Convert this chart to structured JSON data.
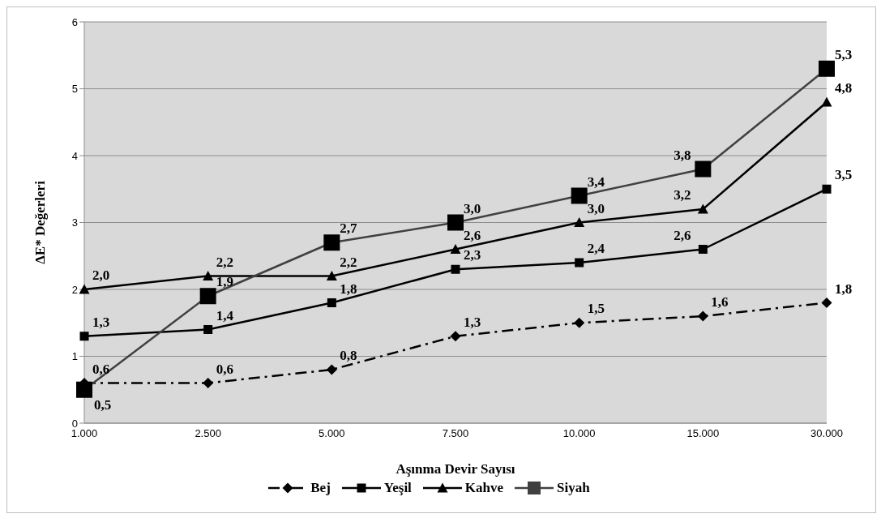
{
  "chart_data": {
    "type": "line",
    "xlabel": "Aşınma Devir Sayısı",
    "ylabel": "ΔE* Değerleri",
    "categories": [
      "1.000",
      "2.500",
      "5.000",
      "7.500",
      "10.000",
      "15.000",
      "30.000"
    ],
    "series": [
      {
        "name": "Bej",
        "color": "#000000",
        "marker": "diamond",
        "line_style": "dashed",
        "values": [
          0.6,
          0.6,
          0.8,
          1.3,
          1.5,
          1.6,
          1.8
        ],
        "value_labels": [
          "0,6",
          "0,6",
          "0,8",
          "1,3",
          "1,5",
          "1,6",
          "1,8"
        ]
      },
      {
        "name": "Yeşil",
        "color": "#000000",
        "marker": "square",
        "line_style": "solid",
        "values": [
          1.3,
          1.4,
          1.8,
          2.3,
          2.4,
          2.6,
          3.5
        ],
        "value_labels": [
          "1,3",
          "1,4",
          "1,8",
          "2,3",
          "2,4",
          "2,6",
          "3,5"
        ]
      },
      {
        "name": "Kahve",
        "color": "#000000",
        "marker": "triangle",
        "line_style": "solid",
        "values": [
          2.0,
          2.2,
          2.2,
          2.6,
          3.0,
          3.2,
          4.8
        ],
        "value_labels": [
          "2,0",
          "2,2",
          "2,2",
          "2,6",
          "3,0",
          "3,2",
          "4,8"
        ]
      },
      {
        "name": "Siyah",
        "color": "#404040",
        "marker": "square",
        "line_style": "solid",
        "values": [
          0.5,
          1.9,
          2.7,
          3.0,
          3.4,
          3.8,
          5.3
        ],
        "value_labels": [
          "0,5",
          "1,9",
          "2,7",
          "3,0",
          "3,4",
          "3,8",
          "5,3"
        ]
      }
    ],
    "ylim": [
      0,
      6
    ],
    "yticks": [
      0,
      1,
      2,
      3,
      4,
      5,
      6
    ],
    "grid": "y",
    "legend": "bottom"
  }
}
